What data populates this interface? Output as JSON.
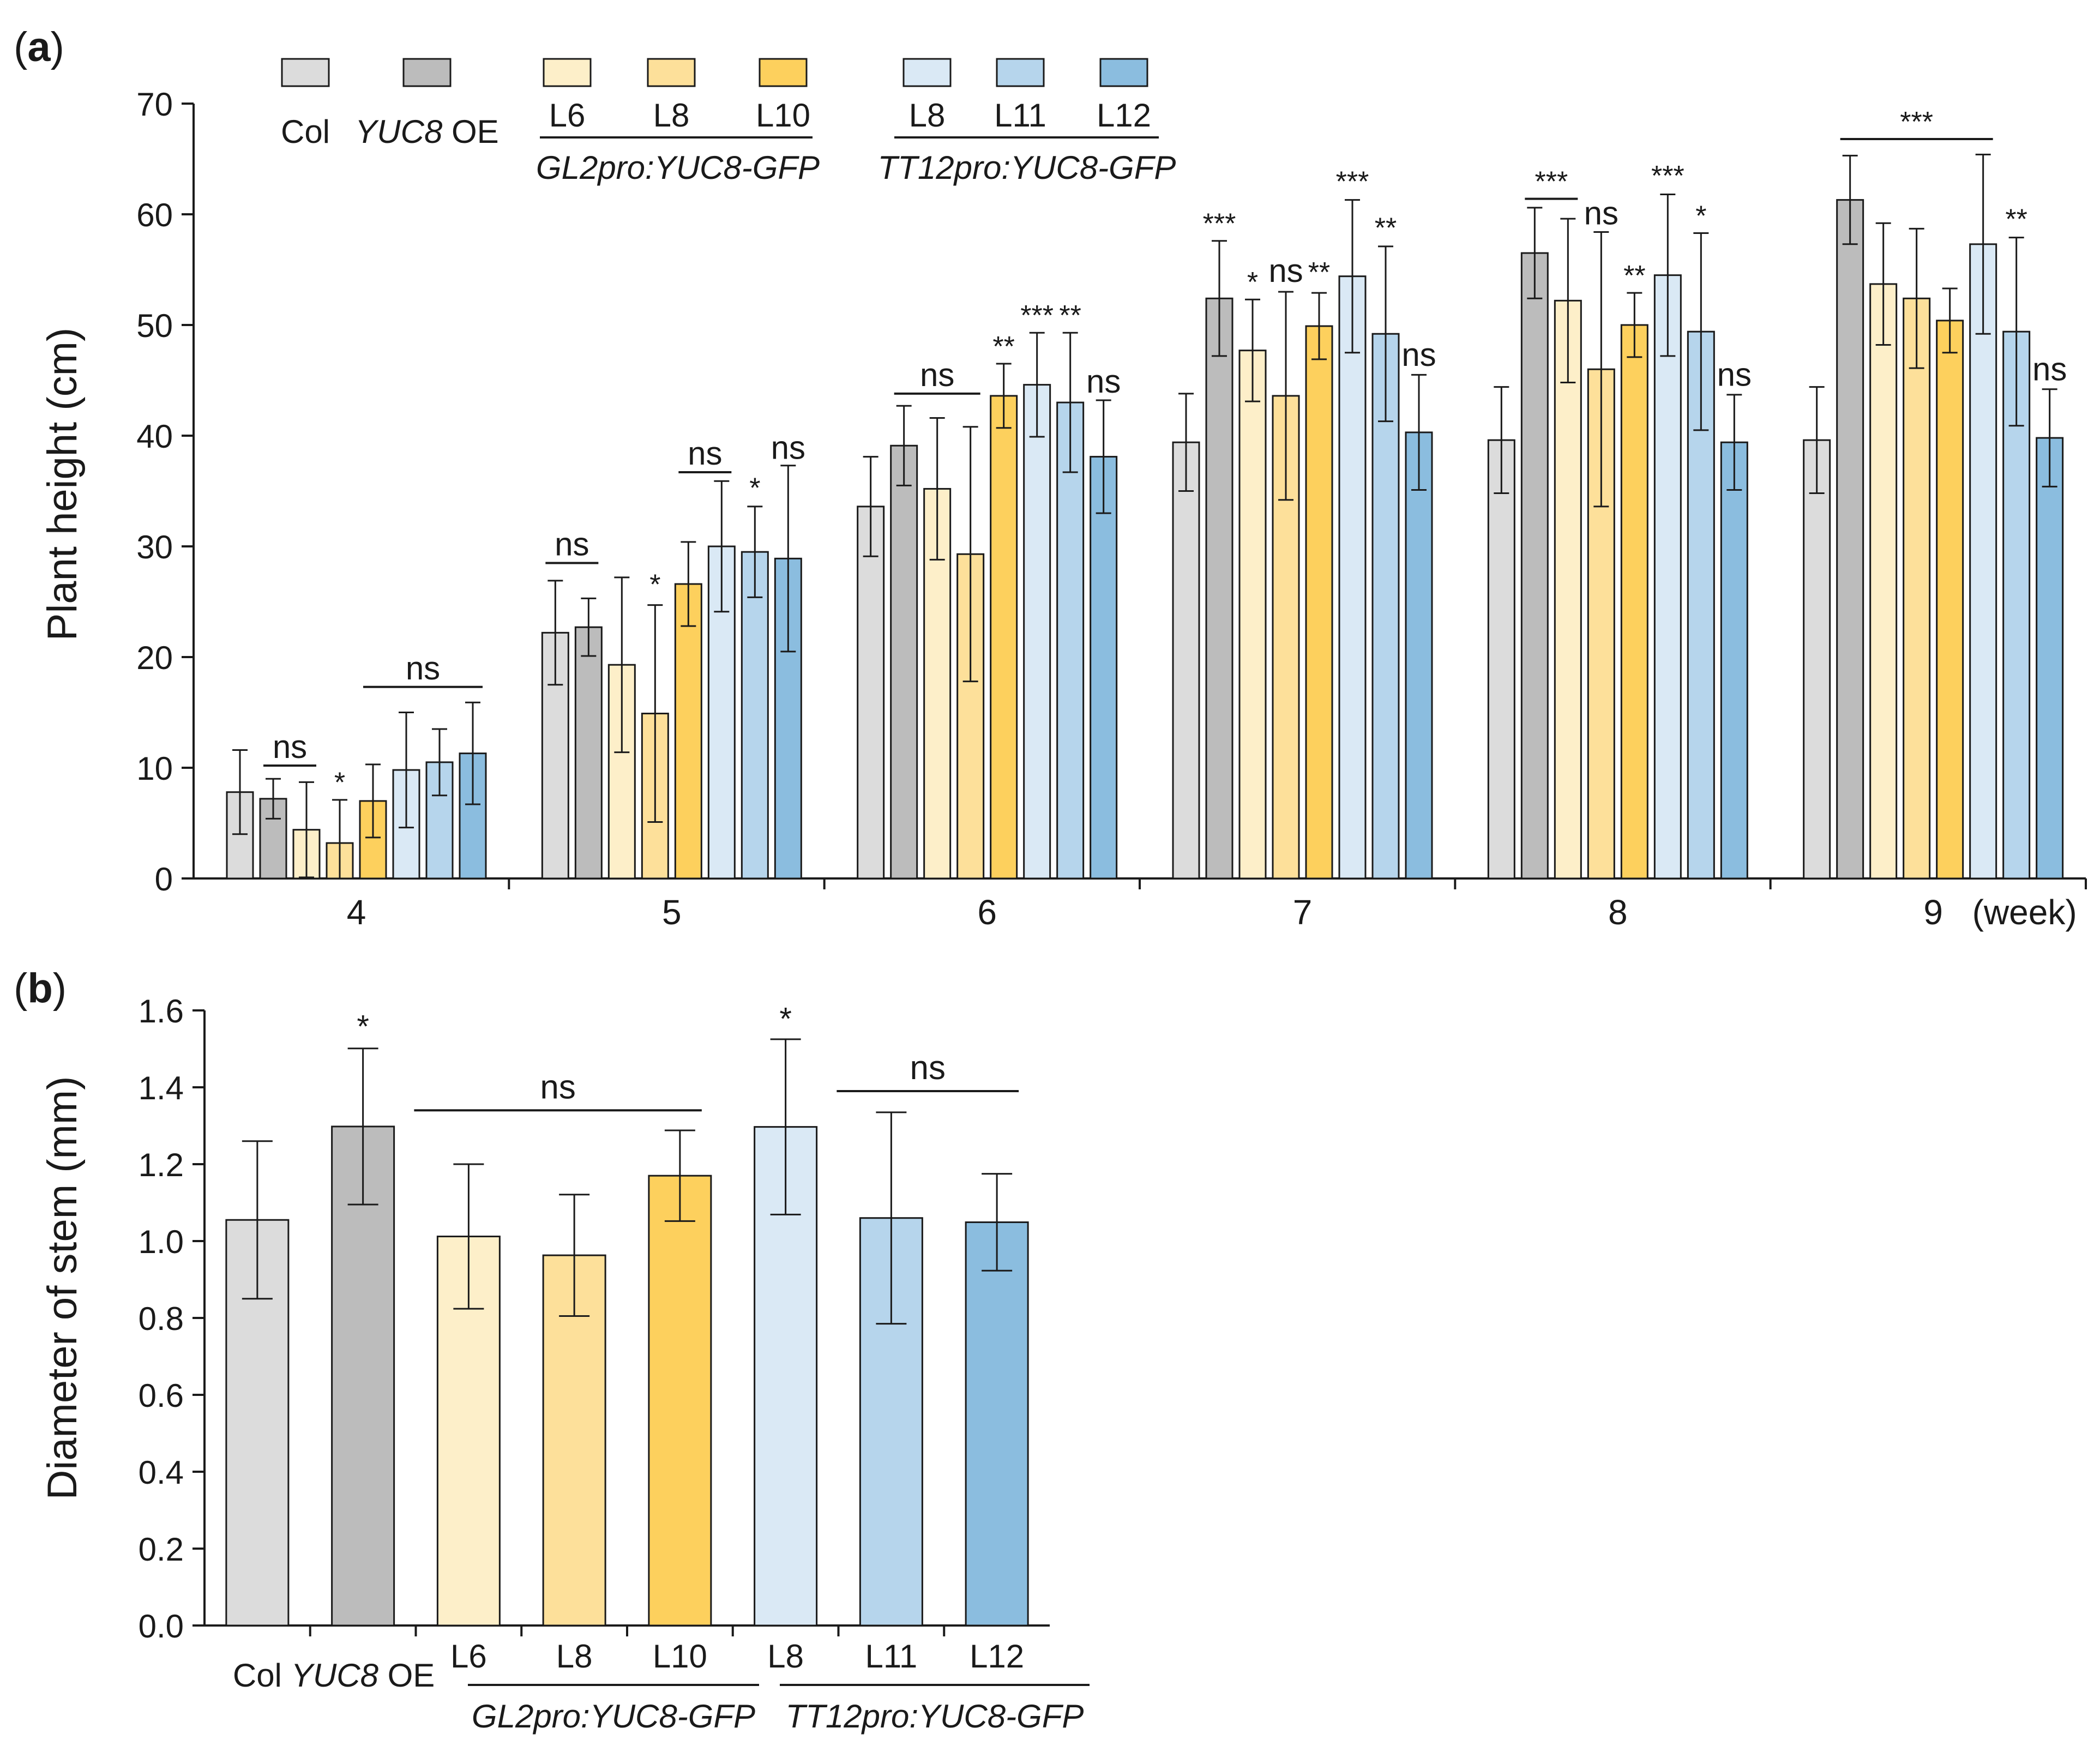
{
  "colors": {
    "Col": "#dcdcdc",
    "YUC8 OE": "#bcbcbc",
    "GL2 L6": "#fdefc9",
    "GL2 L8": "#fde09a",
    "GL2 L10": "#fdd05d",
    "TT12 L8": "#dae9f5",
    "TT12 L11": "#b6d5ec",
    "TT12 L12": "#8bbddf",
    "line": "#1a1a1a"
  },
  "chart_data": [
    {
      "panel": "(a)",
      "panel_letter": "a",
      "type": "bar",
      "title": "",
      "ylabel": "Plant height (cm)",
      "xlabel": "",
      "x_unit": "(week)",
      "ylim": [
        0,
        70
      ],
      "yticks": [
        "0",
        "10",
        "20",
        "30",
        "40",
        "50",
        "60",
        "70"
      ],
      "grid": false,
      "legend_position": "top",
      "legend": {
        "entries": [
          "Col",
          "YUC8 OE",
          "L6",
          "L8",
          "L10",
          "L8",
          "L11",
          "L12"
        ],
        "group_labels": [
          "GL2pro:YUC8-GFP",
          "TT12pro:YUC8-GFP"
        ]
      },
      "categories": [
        "4",
        "5",
        "6",
        "7",
        "8",
        "9"
      ],
      "series": [
        {
          "name": "Col",
          "values": [
            7.8,
            22.2,
            33.6,
            39.4,
            39.6,
            39.6
          ],
          "errors": [
            3.8,
            4.7,
            4.5,
            4.4,
            4.8,
            4.8
          ]
        },
        {
          "name": "YUC8 OE",
          "values": [
            7.2,
            22.7,
            39.1,
            52.4,
            56.5,
            61.3
          ],
          "errors": [
            1.8,
            2.6,
            3.6,
            5.2,
            4.1,
            4.0
          ]
        },
        {
          "name": "GL2pro:YUC8-GFP L6",
          "values": [
            4.4,
            19.3,
            35.2,
            47.7,
            52.2,
            53.7
          ],
          "errors": [
            4.3,
            7.9,
            6.4,
            4.6,
            7.4,
            5.5
          ]
        },
        {
          "name": "GL2pro:YUC8-GFP L8",
          "values": [
            3.2,
            14.9,
            29.3,
            43.6,
            46.0,
            52.4
          ],
          "errors": [
            3.9,
            9.8,
            11.5,
            9.4,
            12.4,
            6.3
          ]
        },
        {
          "name": "GL2pro:YUC8-GFP L10",
          "values": [
            7.0,
            26.6,
            43.6,
            49.9,
            50.0,
            50.4
          ],
          "errors": [
            3.3,
            3.8,
            2.9,
            3.0,
            2.9,
            2.9
          ]
        },
        {
          "name": "TT12pro:YUC8-GFP L8",
          "values": [
            9.8,
            30.0,
            44.6,
            54.4,
            54.5,
            57.3
          ],
          "errors": [
            5.2,
            5.9,
            4.7,
            6.9,
            7.3,
            8.1
          ]
        },
        {
          "name": "TT12pro:YUC8-GFP L11",
          "values": [
            10.5,
            29.5,
            43.0,
            49.2,
            49.4,
            49.4
          ],
          "errors": [
            3.0,
            4.1,
            6.3,
            7.9,
            8.9,
            8.5
          ]
        },
        {
          "name": "TT12pro:YUC8-GFP L12",
          "values": [
            11.3,
            28.9,
            38.1,
            40.3,
            39.4,
            39.8
          ],
          "errors": [
            4.6,
            8.4,
            5.1,
            5.2,
            4.3,
            4.4
          ]
        }
      ],
      "annotations": [
        {
          "text": "ns",
          "week": "4",
          "over": [
            "YUC8 OE",
            "GL2pro:YUC8-GFP L6"
          ],
          "bracket": true,
          "y": 10.2
        },
        {
          "text": "*",
          "week": "4",
          "over": [
            "GL2pro:YUC8-GFP L8"
          ],
          "bracket": false,
          "y": 7.8
        },
        {
          "text": "ns",
          "week": "4",
          "over": [
            "GL2pro:YUC8-GFP L10",
            "TT12pro:YUC8-GFP L12"
          ],
          "bracket": true,
          "y": 17.3
        },
        {
          "text": "ns",
          "week": "5",
          "over": [
            "Col",
            "YUC8 OE"
          ],
          "bracket": true,
          "y": 28.5
        },
        {
          "text": "*",
          "week": "5",
          "over": [
            "GL2pro:YUC8-GFP L8"
          ],
          "bracket": false,
          "y": 25.7
        },
        {
          "text": "ns",
          "week": "5",
          "over": [
            "GL2pro:YUC8-GFP L10",
            "TT12pro:YUC8-GFP L8"
          ],
          "bracket": true,
          "y": 36.7
        },
        {
          "text": "*",
          "week": "5",
          "over": [
            "TT12pro:YUC8-GFP L11"
          ],
          "bracket": false,
          "y": 34.4
        },
        {
          "text": "ns",
          "week": "5",
          "over": [
            "TT12pro:YUC8-GFP L12"
          ],
          "bracket": false,
          "y": 37.9
        },
        {
          "text": "ns",
          "week": "6",
          "over": [
            "YUC8 OE",
            "GL2pro:YUC8-GFP L8"
          ],
          "bracket": true,
          "y": 43.8
        },
        {
          "text": "**",
          "week": "6",
          "over": [
            "GL2pro:YUC8-GFP L10"
          ],
          "bracket": false,
          "y": 47.2
        },
        {
          "text": "***",
          "week": "6",
          "over": [
            "TT12pro:YUC8-GFP L8"
          ],
          "bracket": false,
          "y": 50.0
        },
        {
          "text": "**",
          "week": "6",
          "over": [
            "TT12pro:YUC8-GFP L11"
          ],
          "bracket": false,
          "y": 50.0
        },
        {
          "text": "ns",
          "week": "6",
          "over": [
            "TT12pro:YUC8-GFP L12"
          ],
          "bracket": false,
          "y": 43.9
        },
        {
          "text": "***",
          "week": "7",
          "over": [
            "YUC8 OE"
          ],
          "bracket": false,
          "y": 58.3
        },
        {
          "text": "*",
          "week": "7",
          "over": [
            "GL2pro:YUC8-GFP L6"
          ],
          "bracket": false,
          "y": 53.0
        },
        {
          "text": "ns",
          "week": "7",
          "over": [
            "GL2pro:YUC8-GFP L8"
          ],
          "bracket": false,
          "y": 53.9
        },
        {
          "text": "**",
          "week": "7",
          "over": [
            "GL2pro:YUC8-GFP L10"
          ],
          "bracket": false,
          "y": 53.9
        },
        {
          "text": "***",
          "week": "7",
          "over": [
            "TT12pro:YUC8-GFP L8"
          ],
          "bracket": false,
          "y": 62.1
        },
        {
          "text": "**",
          "week": "7",
          "over": [
            "TT12pro:YUC8-GFP L11"
          ],
          "bracket": false,
          "y": 57.9
        },
        {
          "text": "ns",
          "week": "7",
          "over": [
            "TT12pro:YUC8-GFP L12"
          ],
          "bracket": false,
          "y": 46.3
        },
        {
          "text": "***",
          "week": "8",
          "over": [
            "YUC8 OE",
            "GL2pro:YUC8-GFP L6"
          ],
          "bracket": true,
          "y": 61.4
        },
        {
          "text": "ns",
          "week": "8",
          "over": [
            "GL2pro:YUC8-GFP L8"
          ],
          "bracket": false,
          "y": 59.1
        },
        {
          "text": "**",
          "week": "8",
          "over": [
            "GL2pro:YUC8-GFP L10"
          ],
          "bracket": false,
          "y": 53.6
        },
        {
          "text": "***",
          "week": "8",
          "over": [
            "TT12pro:YUC8-GFP L8"
          ],
          "bracket": false,
          "y": 62.6
        },
        {
          "text": "*",
          "week": "8",
          "over": [
            "TT12pro:YUC8-GFP L11"
          ],
          "bracket": false,
          "y": 59.0
        },
        {
          "text": "ns",
          "week": "8",
          "over": [
            "TT12pro:YUC8-GFP L12"
          ],
          "bracket": false,
          "y": 44.5
        },
        {
          "text": "***",
          "week": "9",
          "over": [
            "YUC8 OE",
            "TT12pro:YUC8-GFP L8"
          ],
          "bracket": true,
          "y": 66.8
        },
        {
          "text": "**",
          "week": "9",
          "over": [
            "TT12pro:YUC8-GFP L11"
          ],
          "bracket": false,
          "y": 58.7
        },
        {
          "text": "ns",
          "week": "9",
          "over": [
            "TT12pro:YUC8-GFP L12"
          ],
          "bracket": false,
          "y": 45.0
        }
      ]
    },
    {
      "panel": "(b)",
      "panel_letter": "b",
      "type": "bar",
      "title": "",
      "ylabel": "Diameter of stem (mm)",
      "xlabel": "",
      "ylim": [
        0,
        1.6
      ],
      "yticks": [
        "0.0",
        "0.2",
        "0.4",
        "0.6",
        "0.8",
        "1.0",
        "1.2",
        "1.4",
        "1.6"
      ],
      "grid": false,
      "categories": [
        "Col",
        "YUC8 OE",
        "L6",
        "L8",
        "L10",
        "L8",
        "L11",
        "L12"
      ],
      "category_group_labels": [
        "GL2pro:YUC8-GFP",
        "TT12pro:YUC8-GFP"
      ],
      "values": [
        1.055,
        1.298,
        1.012,
        0.963,
        1.17,
        1.297,
        1.06,
        1.049
      ],
      "errors": [
        0.205,
        0.203,
        0.188,
        0.158,
        0.118,
        0.228,
        0.275,
        0.126
      ],
      "annotations": [
        {
          "text": "*",
          "over": [
            "YUC8 OE"
          ],
          "bracket": false,
          "y": 1.53
        },
        {
          "text": "ns",
          "over": [
            "L6",
            "L10"
          ],
          "bracket": true,
          "y": 1.34
        },
        {
          "text": "*",
          "over": [
            "L8"
          ],
          "bracket": false,
          "y": 1.55
        },
        {
          "text": "ns",
          "over": [
            "L11",
            "L12"
          ],
          "bracket": true,
          "y": 1.39
        }
      ]
    }
  ]
}
